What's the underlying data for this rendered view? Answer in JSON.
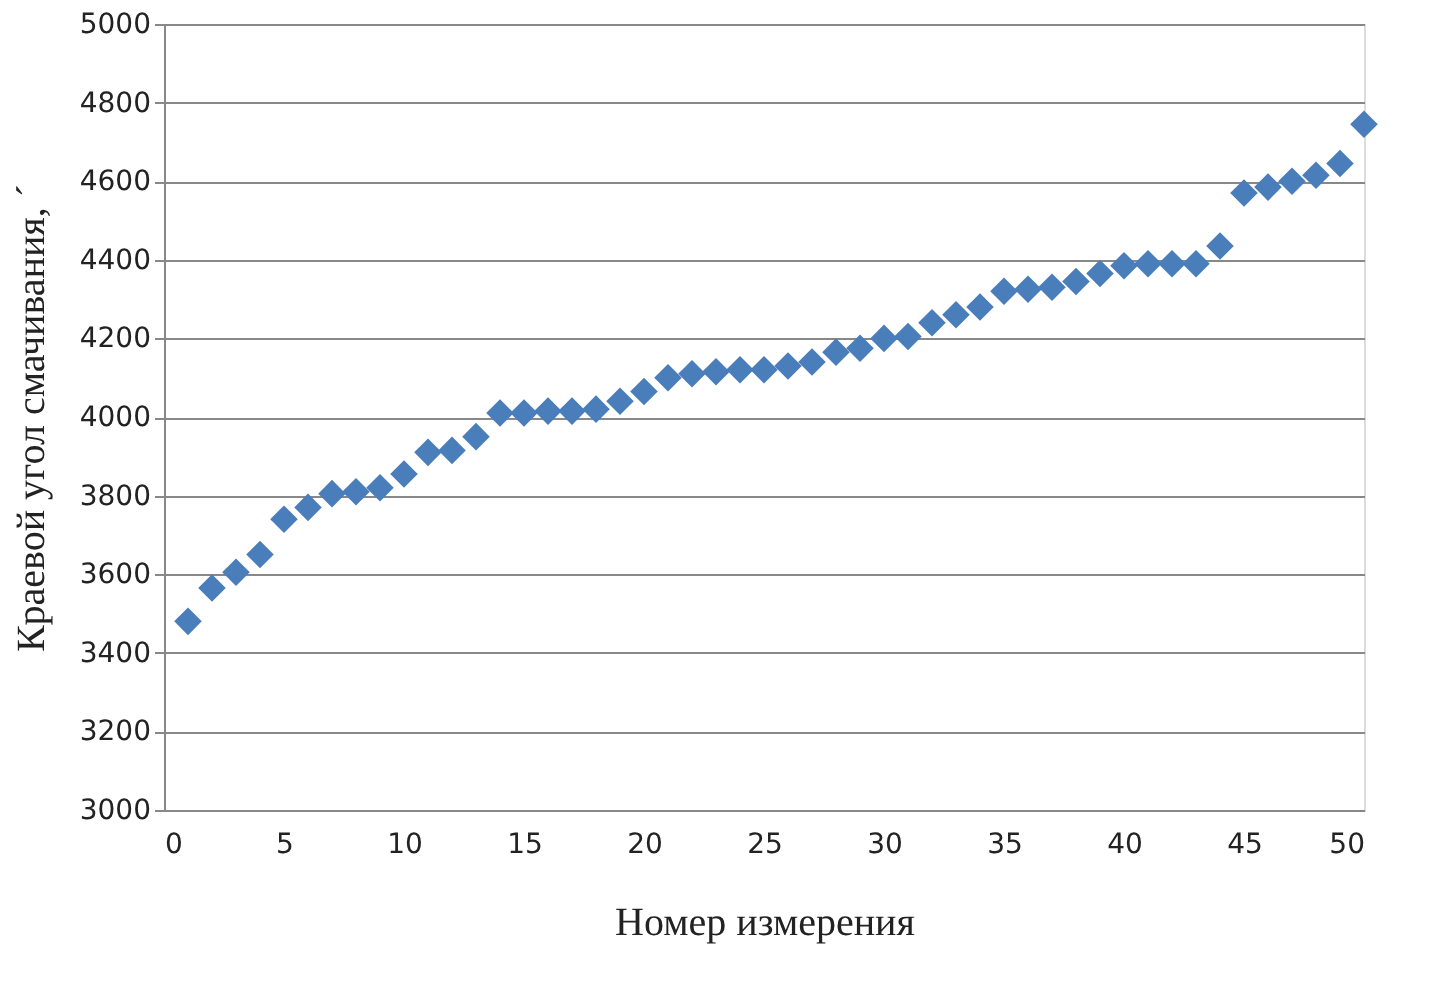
{
  "chart_data": {
    "type": "scatter",
    "xlabel": "Номер измерения",
    "ylabel": "Краевой угол смачивания, ´",
    "x": [
      1,
      2,
      3,
      4,
      5,
      6,
      7,
      8,
      9,
      10,
      11,
      12,
      13,
      14,
      15,
      16,
      17,
      18,
      19,
      20,
      21,
      22,
      23,
      24,
      25,
      26,
      27,
      28,
      29,
      30,
      31,
      32,
      33,
      34,
      35,
      36,
      37,
      38,
      39,
      40,
      41,
      42,
      43,
      44,
      45,
      46,
      47,
      48,
      49,
      50
    ],
    "series": [
      {
        "color": "#4a7ebb",
        "values": [
          3480,
          3565,
          3605,
          3650,
          3740,
          3770,
          3805,
          3810,
          3820,
          3855,
          3910,
          3915,
          3950,
          4010,
          4010,
          4015,
          4015,
          4020,
          4040,
          4065,
          4100,
          4110,
          4115,
          4120,
          4120,
          4130,
          4140,
          4165,
          4175,
          4200,
          4205,
          4240,
          4260,
          4280,
          4320,
          4325,
          4330,
          4345,
          4365,
          4385,
          4390,
          4390,
          4390,
          4435,
          4570,
          4585,
          4600,
          4615,
          4645,
          4745
        ]
      }
    ],
    "xlim": [
      0,
      50
    ],
    "xticks": [
      0,
      5,
      10,
      15,
      20,
      25,
      30,
      35,
      40,
      45,
      50
    ],
    "ylim": [
      3000,
      5000
    ],
    "yticks": [
      3000,
      3200,
      3400,
      3600,
      3800,
      4000,
      4200,
      4400,
      4600,
      4800,
      5000
    ],
    "grid": "y",
    "marker": "diamond",
    "legend": false
  }
}
